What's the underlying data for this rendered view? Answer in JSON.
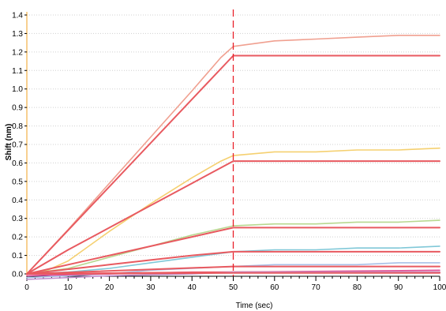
{
  "chart_data": {
    "type": "line",
    "title": "",
    "xlabel": "Time (sec)",
    "ylabel": "Shift (nm)",
    "xlim": [
      0,
      100
    ],
    "ylim": [
      -0.05,
      1.42
    ],
    "x_ticks": [
      0,
      10,
      20,
      30,
      40,
      50,
      60,
      70,
      80,
      90,
      100
    ],
    "y_ticks": [
      0.0,
      0.1,
      0.2,
      0.3,
      0.4,
      0.5,
      0.6,
      0.7,
      0.8,
      0.9,
      1.0,
      1.1,
      1.2,
      1.3,
      1.4
    ],
    "y_tick_labels": [
      "0.0",
      "0.1",
      "0.2",
      "0.3",
      "0.4",
      "0.5",
      "0.6",
      "0.7",
      "0.8",
      "0.9",
      "1.0",
      "1.1",
      "1.2",
      "1.3",
      "1.4"
    ],
    "grid": {
      "horizontal": "dotted",
      "vertical": false
    },
    "legend": "none",
    "annotations": [
      {
        "type": "vertical-dashed-line",
        "x": 50,
        "color": "#e8202a"
      }
    ],
    "series": [
      {
        "color": "#f0a090",
        "kind": "measured",
        "points": [
          [
            0,
            0
          ],
          [
            10,
            0.24
          ],
          [
            20,
            0.49
          ],
          [
            30,
            0.74
          ],
          [
            40,
            0.99
          ],
          [
            47,
            1.17
          ],
          [
            50,
            1.23
          ],
          [
            60,
            1.26
          ],
          [
            70,
            1.27
          ],
          [
            80,
            1.28
          ],
          [
            90,
            1.29
          ],
          [
            100,
            1.29
          ]
        ]
      },
      {
        "color": "#e85a60",
        "kind": "fit",
        "points": [
          [
            0,
            0
          ],
          [
            50,
            1.18
          ],
          [
            100,
            1.18
          ]
        ]
      },
      {
        "color": "#f5d070",
        "kind": "measured",
        "points": [
          [
            0,
            0
          ],
          [
            5,
            0.02
          ],
          [
            10,
            0.07
          ],
          [
            20,
            0.23
          ],
          [
            30,
            0.38
          ],
          [
            40,
            0.52
          ],
          [
            47,
            0.61
          ],
          [
            50,
            0.64
          ],
          [
            60,
            0.66
          ],
          [
            70,
            0.66
          ],
          [
            80,
            0.67
          ],
          [
            90,
            0.67
          ],
          [
            100,
            0.68
          ]
        ]
      },
      {
        "color": "#e85a60",
        "kind": "fit",
        "points": [
          [
            0,
            0
          ],
          [
            10,
            0.13
          ],
          [
            20,
            0.25
          ],
          [
            30,
            0.37
          ],
          [
            40,
            0.49
          ],
          [
            50,
            0.61
          ],
          [
            100,
            0.61
          ]
        ]
      },
      {
        "color": "#b8d890",
        "kind": "measured",
        "points": [
          [
            0,
            0
          ],
          [
            10,
            0.03
          ],
          [
            20,
            0.09
          ],
          [
            30,
            0.15
          ],
          [
            40,
            0.21
          ],
          [
            50,
            0.26
          ],
          [
            60,
            0.27
          ],
          [
            70,
            0.27
          ],
          [
            80,
            0.28
          ],
          [
            90,
            0.28
          ],
          [
            100,
            0.29
          ]
        ]
      },
      {
        "color": "#e85a60",
        "kind": "fit",
        "points": [
          [
            0,
            0
          ],
          [
            10,
            0.05
          ],
          [
            20,
            0.1
          ],
          [
            30,
            0.15
          ],
          [
            40,
            0.2
          ],
          [
            50,
            0.25
          ],
          [
            100,
            0.25
          ]
        ]
      },
      {
        "color": "#80c8d8",
        "kind": "measured",
        "points": [
          [
            0,
            0
          ],
          [
            10,
            0.01
          ],
          [
            20,
            0.03
          ],
          [
            30,
            0.06
          ],
          [
            40,
            0.09
          ],
          [
            50,
            0.12
          ],
          [
            60,
            0.13
          ],
          [
            70,
            0.13
          ],
          [
            80,
            0.14
          ],
          [
            90,
            0.14
          ],
          [
            100,
            0.15
          ]
        ]
      },
      {
        "color": "#e85a60",
        "kind": "fit",
        "points": [
          [
            0,
            0
          ],
          [
            10,
            0.025
          ],
          [
            20,
            0.05
          ],
          [
            30,
            0.075
          ],
          [
            40,
            0.1
          ],
          [
            50,
            0.12
          ],
          [
            100,
            0.12
          ]
        ]
      },
      {
        "color": "#a8c0e8",
        "kind": "measured",
        "points": [
          [
            0,
            -0.02
          ],
          [
            10,
            -0.01
          ],
          [
            20,
            0.0
          ],
          [
            30,
            0.02
          ],
          [
            40,
            0.03
          ],
          [
            50,
            0.04
          ],
          [
            60,
            0.05
          ],
          [
            70,
            0.05
          ],
          [
            80,
            0.05
          ],
          [
            90,
            0.06
          ],
          [
            100,
            0.06
          ]
        ]
      },
      {
        "color": "#e85a60",
        "kind": "fit",
        "points": [
          [
            0,
            0
          ],
          [
            50,
            0.04
          ],
          [
            100,
            0.04
          ]
        ]
      },
      {
        "color": "#e0509a",
        "kind": "measured",
        "points": [
          [
            0,
            -0.01
          ],
          [
            20,
            0.0
          ],
          [
            40,
            0.01
          ],
          [
            50,
            0.01
          ],
          [
            100,
            0.02
          ]
        ]
      },
      {
        "color": "#e85a60",
        "kind": "fit",
        "points": [
          [
            0,
            0
          ],
          [
            50,
            0.01
          ],
          [
            100,
            0.01
          ]
        ]
      },
      {
        "color": "#c090d0",
        "kind": "measured",
        "points": [
          [
            0,
            -0.03
          ],
          [
            20,
            -0.01
          ],
          [
            40,
            0.0
          ],
          [
            50,
            0.01
          ],
          [
            100,
            0.01
          ]
        ]
      },
      {
        "color": "#e85a60",
        "kind": "fit",
        "points": [
          [
            0,
            0
          ],
          [
            50,
            0.005
          ],
          [
            100,
            0.005
          ]
        ]
      }
    ]
  }
}
